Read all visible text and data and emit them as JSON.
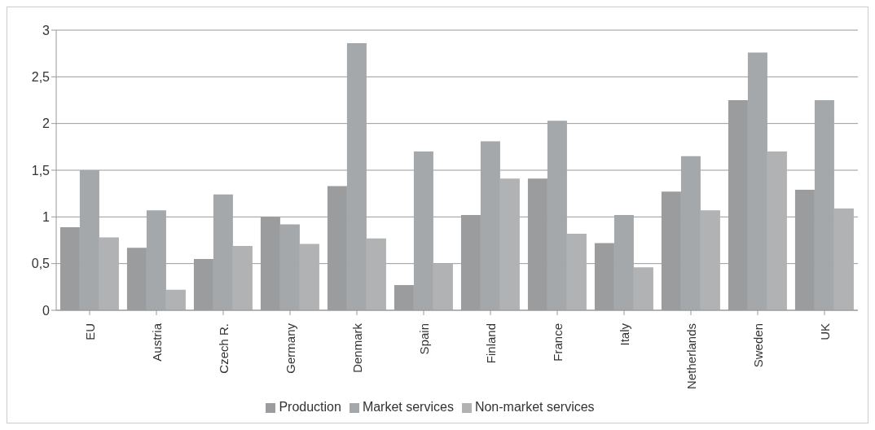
{
  "chart_data": {
    "type": "bar",
    "categories": [
      "EU",
      "Austria",
      "Czech R.",
      "Germany",
      "Denmark",
      "Spain",
      "Finland",
      "France",
      "Italy",
      "Netherlands",
      "Sweden",
      "UK"
    ],
    "series": [
      {
        "name": "Production",
        "color": "#9a9c9e",
        "values": [
          0.89,
          0.67,
          0.55,
          1.0,
          1.33,
          0.27,
          1.02,
          1.41,
          0.72,
          1.27,
          2.25,
          1.29
        ]
      },
      {
        "name": "Market services",
        "color": "#a5a8ab",
        "values": [
          1.5,
          1.07,
          1.24,
          0.92,
          2.86,
          1.7,
          1.81,
          2.03,
          1.02,
          1.65,
          2.76,
          2.25
        ]
      },
      {
        "name": "Non-market services",
        "color": "#b0b2b4",
        "values": [
          0.78,
          0.22,
          0.69,
          0.71,
          0.77,
          0.5,
          1.41,
          0.82,
          0.46,
          1.07,
          1.7,
          1.09
        ]
      }
    ],
    "ylim": [
      0,
      3
    ],
    "yticks": [
      0,
      {
        "value": 0.5,
        "label": "0,5"
      },
      1,
      {
        "value": 1.5,
        "label": "1,5"
      },
      2,
      {
        "value": 2.5,
        "label": "2,5"
      },
      3
    ],
    "grid": "y",
    "legend": "bottom"
  }
}
